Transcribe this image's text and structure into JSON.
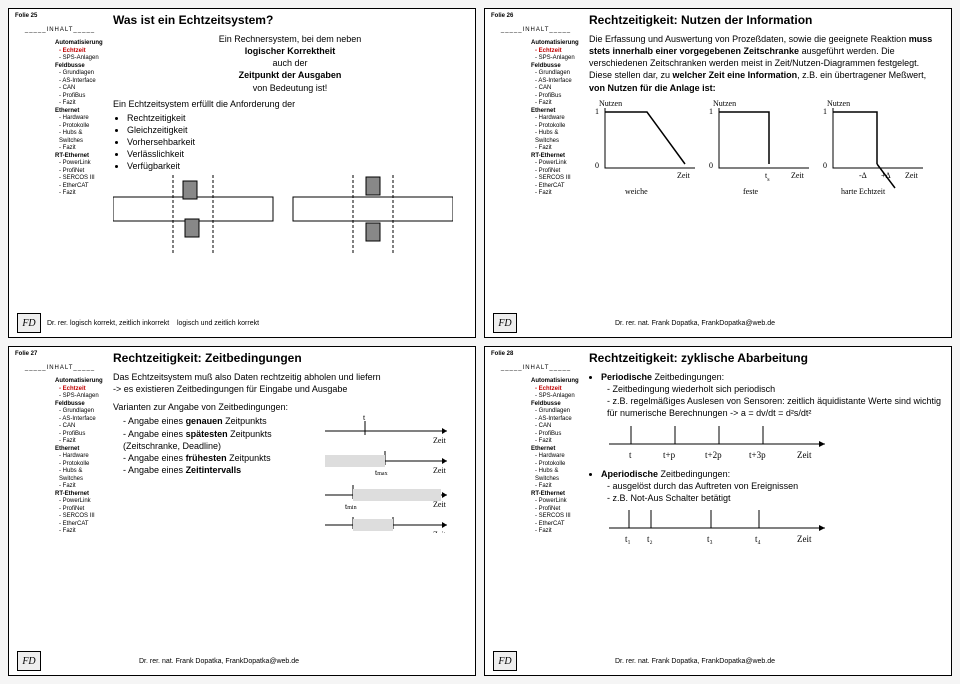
{
  "author": "Dr. rer. nat. Frank Dopatka, FrankDopatka@web.de",
  "sidebar_items": [
    {
      "t": "Automatisierung",
      "c": "l0"
    },
    {
      "t": "- Echtzeit",
      "c": "l1"
    },
    {
      "t": "- SPS-Anlagen",
      "c": "l1"
    },
    {
      "t": "Feldbusse",
      "c": "l0"
    },
    {
      "t": "- Grundlagen",
      "c": "l1"
    },
    {
      "t": "- AS-Interface",
      "c": "l1"
    },
    {
      "t": "- CAN",
      "c": "l1"
    },
    {
      "t": "- ProfiBus",
      "c": "l1"
    },
    {
      "t": "- Fazit",
      "c": "l1"
    },
    {
      "t": "Ethernet",
      "c": "l0"
    },
    {
      "t": "- Hardware",
      "c": "l1"
    },
    {
      "t": "- Protokolle",
      "c": "l1"
    },
    {
      "t": "- Hubs & Switches",
      "c": "l1"
    },
    {
      "t": "- Fazit",
      "c": "l1"
    },
    {
      "t": "RT-Ethernet",
      "c": "l0"
    },
    {
      "t": "- PowerLink",
      "c": "l1"
    },
    {
      "t": "- ProfiNet",
      "c": "l1"
    },
    {
      "t": "- SERCOS III",
      "c": "l1"
    },
    {
      "t": "- EtherCAT",
      "c": "l1"
    },
    {
      "t": "- Fazit",
      "c": "l1"
    }
  ],
  "s25": {
    "n": "Folie 25",
    "title": "Was ist ein Echtzeitsystem?",
    "p1a": "Ein Rechnersystem, bei dem neben",
    "p1b": "logischer Korrektheit",
    "p1c": "auch der",
    "p1d": "Zeitpunkt der Ausgaben",
    "p1e": "von Bedeutung ist!",
    "p2": "Ein Echtzeitsystem erfüllt die Anforderung der",
    "li": [
      "Rechtzeitigkeit",
      "Gleichzeitigkeit",
      "Vorhersehbarkeit",
      "Verlässlichkeit",
      "Verfügbarkeit"
    ],
    "cap1": "logisch korrekt, zeitlich inkorrekt",
    "cap2": "logisch und zeitlich korrekt"
  },
  "s26": {
    "n": "Folie 26",
    "title": "Rechtzeitigkeit: Nutzen der Information",
    "p": "Die Erfassung und Auswertung von Prozeßdaten, sowie die geeignete Reaktion <b>muss stets innerhalb einer vorgegebenen Zeitschranke</b> ausgeführt werden. Die verschiedenen Zeitschranken werden meist in Zeit/Nutzen-Diagrammen festgelegt. Diese stellen dar, zu <b>welcher Zeit eine Information</b>, z.B. ein übertragener Meßwert, <b>von Nutzen für die Anlage ist:</b>",
    "lbl": [
      "weiche",
      "feste",
      "harte Echtzeit"
    ],
    "ax_y": "Nutzen",
    "ax_x": "Zeit"
  },
  "s27": {
    "n": "Folie 27",
    "title": "Rechtzeitigkeit: Zeitbedingungen",
    "p1": "Das Echtzeitsystem muß also Daten rechtzeitig abholen und liefern",
    "p1b": "-> es existieren Zeitbedingungen für Eingabe und Ausgabe",
    "p2": "Varianten zur Angabe von Zeitbedingungen:",
    "li": [
      "Angabe eines <b>genauen</b> Zeitpunkts",
      "Angabe eines <b>spätesten</b> Zeitpunkts (Zeitschranke, Deadline)",
      "Angabe eines <b>frühesten</b> Zeitpunkts",
      "Angabe eines <b>Zeitintervalls</b>"
    ]
  },
  "s28": {
    "n": "Folie 28",
    "title": "Rechtzeitigkeit: zyklische Abarbeitung",
    "b1": "<b>Periodische</b> Zeitbedingungen:",
    "b1a": "- Zeitbedingung wiederholt sich periodisch",
    "b1b": "- z.B. regelmäßiges Auslesen von Sensoren: zeitlich äquidistante Werte sind wichtig für numerische Berechnungen -> a = dv/dt = d²s/dt²",
    "b2": "<b>Aperiodische</b> Zeitbedingungen:",
    "b2a": "- ausgelöst durch das Auftreten von Ereignissen",
    "b2b": "- z.B. Not-Aus Schalter betätigt"
  }
}
